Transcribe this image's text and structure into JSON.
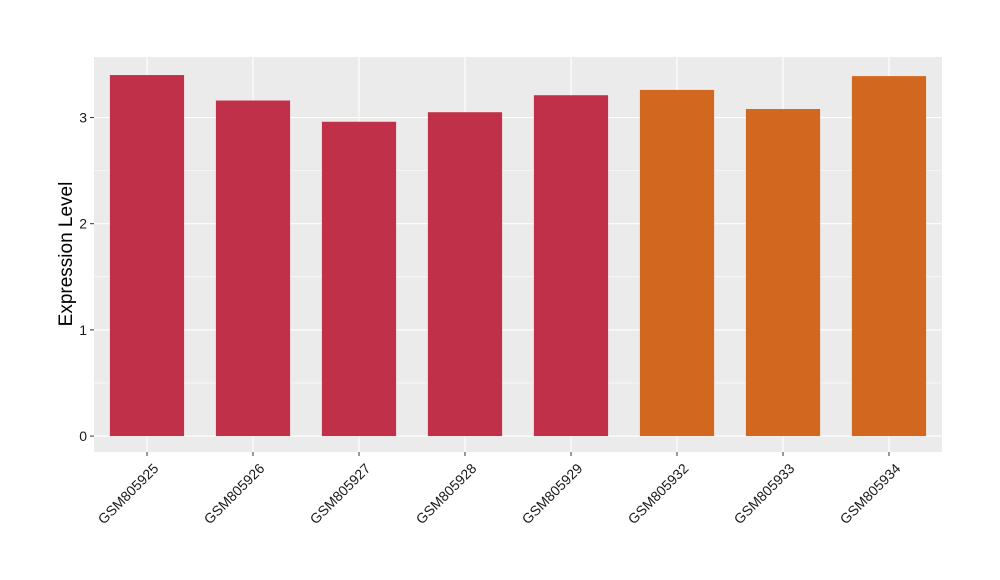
{
  "chart_data": {
    "type": "bar",
    "categories": [
      "GSM805925",
      "GSM805926",
      "GSM805927",
      "GSM805928",
      "GSM805929",
      "GSM805932",
      "GSM805933",
      "GSM805934"
    ],
    "values": [
      3.4,
      3.16,
      2.96,
      3.05,
      3.21,
      3.26,
      3.08,
      3.39
    ],
    "bar_colors": [
      "#c03048",
      "#c03048",
      "#c03048",
      "#c03048",
      "#c03048",
      "#d2671f",
      "#d2671f",
      "#d2671f"
    ],
    "xlabel": "",
    "ylabel": "Expression Level",
    "ylim": [
      -0.15,
      3.57
    ],
    "yticks": [
      0,
      1,
      2,
      3
    ],
    "ytick_labels": [
      "0",
      "1",
      "2",
      "3"
    ],
    "grid": true,
    "legend": "none",
    "colors": {
      "panel_background": "#ebebeb",
      "grid": "#ffffff"
    }
  }
}
